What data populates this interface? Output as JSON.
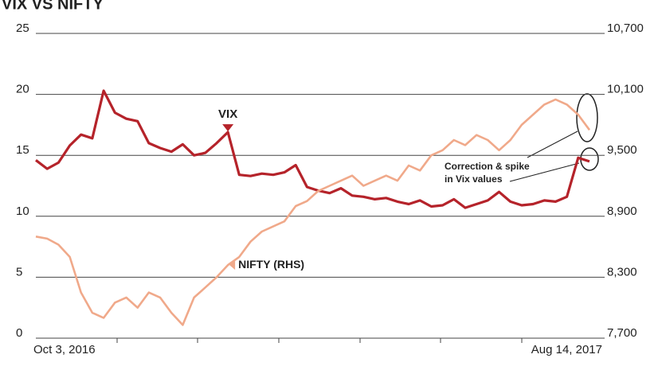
{
  "chart_data": {
    "type": "line",
    "title": "VIX VS NIFTY",
    "categories": [
      "Oct 3, 2016",
      null,
      null,
      null,
      null,
      null,
      null,
      null,
      null,
      null,
      null,
      null,
      null,
      null,
      null,
      null,
      null,
      null,
      null,
      null,
      null,
      null,
      null,
      null,
      null,
      null,
      null,
      null,
      null,
      null,
      null,
      null,
      null,
      null,
      null,
      null,
      null,
      null,
      null,
      null,
      null,
      null,
      null,
      null,
      null,
      null,
      null,
      null,
      null,
      "Aug 14, 2017"
    ],
    "series": [
      {
        "name": "VIX",
        "color": "#b5232a",
        "values": [
          14.6,
          13.9,
          14.4,
          15.8,
          16.7,
          16.4,
          20.3,
          18.5,
          18.0,
          17.8,
          16.0,
          15.6,
          15.3,
          15.9,
          15.0,
          15.2,
          16.0,
          16.9,
          13.4,
          13.3,
          13.5,
          13.4,
          13.6,
          14.2,
          12.4,
          12.1,
          11.9,
          12.3,
          11.7,
          11.6,
          11.4,
          11.5,
          11.2,
          11.0,
          11.3,
          10.8,
          10.9,
          11.4,
          10.7,
          11.0,
          11.3,
          12.0,
          11.2,
          10.9,
          11.0,
          11.3,
          11.2,
          11.6,
          14.8,
          14.5
        ]
      },
      {
        "name": "NIFTY (RHS)",
        "color": "#f0a98a",
        "axis": "y2",
        "values": [
          8700,
          8680,
          8620,
          8500,
          8150,
          7950,
          7900,
          8050,
          8100,
          8000,
          8150,
          8100,
          7950,
          7830,
          8100,
          8200,
          8300,
          8420,
          8500,
          8650,
          8750,
          8800,
          8850,
          9000,
          9050,
          9150,
          9200,
          9250,
          9300,
          9200,
          9250,
          9300,
          9250,
          9400,
          9350,
          9500,
          9550,
          9650,
          9600,
          9700,
          9650,
          9550,
          9650,
          9800,
          9900,
          10000,
          10050,
          10000,
          9900,
          9750
        ]
      }
    ],
    "ylim": [
      0,
      25
    ],
    "yticks": [
      0,
      5,
      10,
      15,
      20,
      25
    ],
    "y2lim": [
      7700,
      10700
    ],
    "y2ticks": [
      {
        "value": 7700,
        "label": "7,700"
      },
      {
        "value": 8300,
        "label": "8,300"
      },
      {
        "value": 8900,
        "label": "8,900"
      },
      {
        "value": 9500,
        "label": "9,500"
      },
      {
        "value": 10100,
        "label": "10,100"
      },
      {
        "value": 10700,
        "label": "10,700"
      }
    ],
    "grid": true,
    "annotations": [
      "Correction & spike",
      "in Vix values"
    ]
  }
}
